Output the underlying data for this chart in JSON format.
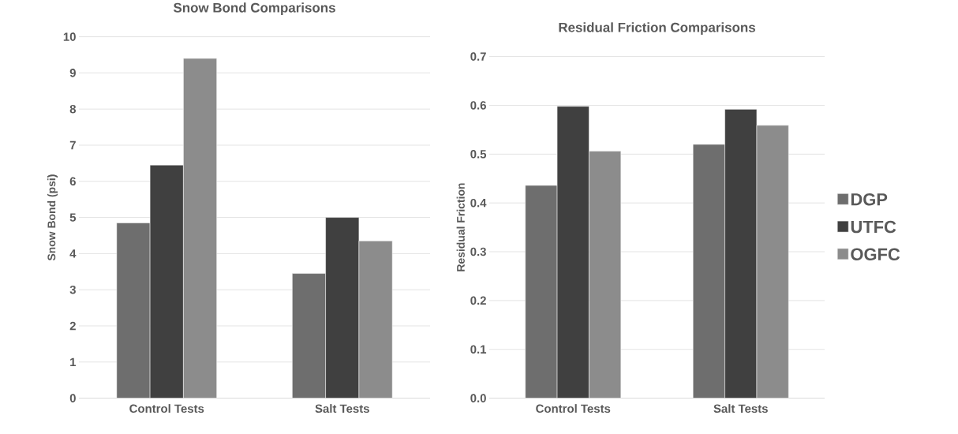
{
  "chart_data": [
    {
      "type": "bar",
      "title": "Snow Bond Comparisons",
      "ylabel": "Snow Bond (psi)",
      "categories": [
        "Control Tests",
        "Salt Tests"
      ],
      "series": [
        {
          "color": "#6e6e6e",
          "values": [
            4.85,
            3.45
          ]
        },
        {
          "color": "#404040",
          "values": [
            6.45,
            5.0
          ]
        },
        {
          "color": "#8c8c8c",
          "values": [
            9.4,
            4.35
          ]
        }
      ],
      "ylim": [
        0,
        10
      ],
      "yticks": [
        0,
        1,
        2,
        3,
        4,
        5,
        6,
        7,
        8,
        9,
        10
      ],
      "grid": "y",
      "legend": false
    },
    {
      "type": "bar",
      "title": "Residual Friction Comparisons",
      "ylabel": "Residual Friction",
      "categories": [
        "Control Tests",
        "Salt Tests"
      ],
      "series": [
        {
          "name": "DGP",
          "color": "#6e6e6e",
          "values": [
            0.436,
            0.52
          ]
        },
        {
          "name": "UTFC",
          "color": "#404040",
          "values": [
            0.598,
            0.592
          ]
        },
        {
          "name": "OGFC",
          "color": "#8c8c8c",
          "values": [
            0.506,
            0.559
          ]
        }
      ],
      "ylim": [
        0,
        0.7
      ],
      "yticks": [
        {
          "value": 0,
          "label": "0.0"
        },
        0.1,
        0.2,
        0.3,
        0.4,
        0.5,
        0.6,
        0.7
      ],
      "grid": "y",
      "legend": "right"
    }
  ]
}
